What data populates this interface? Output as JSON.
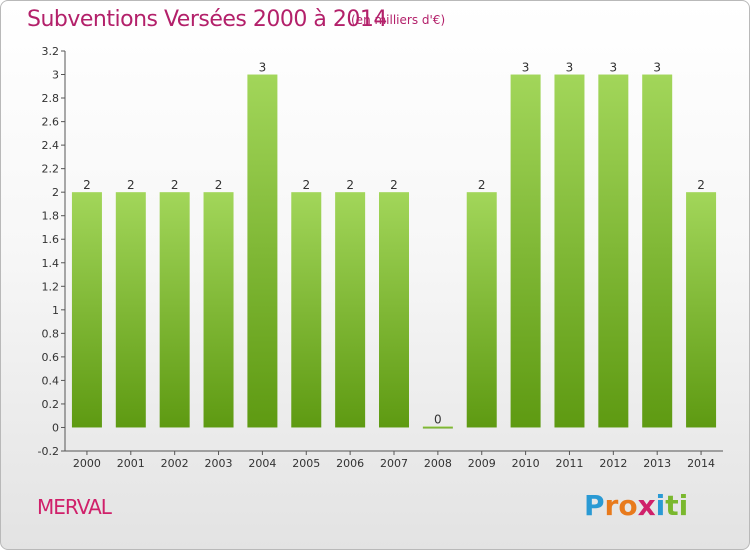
{
  "chart_data": {
    "type": "bar",
    "title": "Subventions Versées 2000 à 2014",
    "subtitle": "(en milliers d'€)",
    "categories": [
      "2000",
      "2001",
      "2002",
      "2003",
      "2004",
      "2005",
      "2006",
      "2007",
      "2008",
      "2009",
      "2010",
      "2011",
      "2012",
      "2013",
      "2014"
    ],
    "values": [
      2,
      2,
      2,
      2,
      3,
      2,
      2,
      2,
      0,
      2,
      3,
      3,
      3,
      3,
      2
    ],
    "data_labels": [
      "2",
      "2",
      "2",
      "2",
      "3",
      "2",
      "2",
      "2",
      "0",
      "2",
      "3",
      "3",
      "3",
      "3",
      "2"
    ],
    "ylim": [
      -0.2,
      3.2
    ],
    "y_ticks": [
      "-0.2",
      "0",
      "0.2",
      "0.4",
      "0.6",
      "0.8",
      "1",
      "1.2",
      "1.4",
      "1.6",
      "1.8",
      "2",
      "2.2",
      "2.4",
      "2.6",
      "2.8",
      "3",
      "3.2"
    ],
    "grid": false,
    "legend": "none",
    "bar_color": "#7ab82e"
  },
  "footer": {
    "commune": "MERVAL",
    "logo_letters": [
      "P",
      "r",
      "o",
      "x",
      "i",
      "t",
      "i"
    ],
    "logo_colors": [
      "#2a9ad4",
      "#e87a1c",
      "#e87a1c",
      "#d0206a",
      "#2a9ad4",
      "#7ab82e",
      "#7ab82e"
    ]
  }
}
